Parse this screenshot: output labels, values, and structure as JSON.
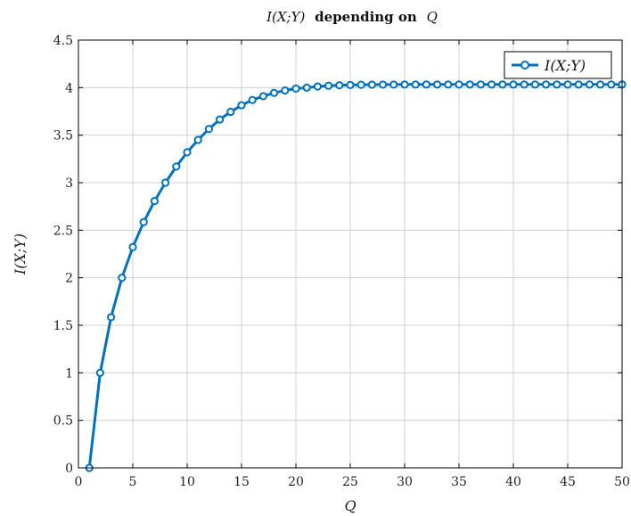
{
  "chart_data": {
    "type": "line",
    "title": {
      "math": "I(X;Y)",
      "text": "depending on",
      "var": "Q"
    },
    "xlabel": "Q",
    "ylabel": "I(X;Y)",
    "xlim": [
      0,
      50
    ],
    "ylim": [
      0,
      4.5
    ],
    "xticks": [
      "0",
      "5",
      "10",
      "15",
      "20",
      "25",
      "30",
      "35",
      "40",
      "45",
      "50"
    ],
    "yticks": [
      "0",
      "0.5",
      "1",
      "1.5",
      "2",
      "2.5",
      "3",
      "3.5",
      "4",
      "4.5"
    ],
    "grid": true,
    "legend_position": "top-right",
    "color": "#0072bd",
    "series": [
      {
        "name": "I(X;Y)",
        "x": [
          1,
          2,
          3,
          4,
          5,
          6,
          7,
          8,
          9,
          10,
          11,
          12,
          13,
          14,
          15,
          16,
          17,
          18,
          19,
          20,
          21,
          22,
          23,
          24,
          25,
          26,
          27,
          28,
          29,
          30,
          31,
          32,
          33,
          34,
          35,
          36,
          37,
          38,
          39,
          40,
          41,
          42,
          43,
          44,
          45,
          46,
          47,
          48,
          49,
          50
        ],
        "y": [
          0,
          1,
          1.585,
          2,
          2.322,
          2.585,
          2.807,
          3,
          3.17,
          3.32,
          3.45,
          3.565,
          3.665,
          3.745,
          3.815,
          3.87,
          3.91,
          3.945,
          3.97,
          3.99,
          4.0,
          4.012,
          4.02,
          4.025,
          4.028,
          4.03,
          4.031,
          4.032,
          4.032,
          4.033,
          4.033,
          4.033,
          4.033,
          4.033,
          4.033,
          4.033,
          4.033,
          4.033,
          4.033,
          4.033,
          4.033,
          4.033,
          4.033,
          4.033,
          4.033,
          4.033,
          4.033,
          4.033,
          4.033,
          4.033
        ]
      }
    ]
  }
}
